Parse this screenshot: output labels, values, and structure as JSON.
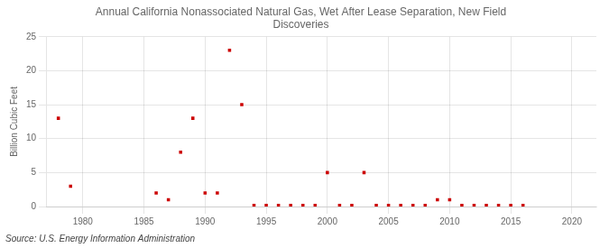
{
  "chart_data": {
    "type": "scatter",
    "title": "Annual California Nonassociated Natural Gas, Wet After Lease Separation, New Field\nDiscoveries",
    "ylabel": "Billion Cubic Feet",
    "source": "Source: U.S. Energy Information Administration",
    "x": [
      1978,
      1979,
      1986,
      1987,
      1988,
      1989,
      1990,
      1991,
      1992,
      1993,
      1994,
      1995,
      1996,
      1997,
      1998,
      1999,
      2000,
      2001,
      2002,
      2003,
      2004,
      2005,
      2006,
      2007,
      2008,
      2009,
      2010,
      2011,
      2012,
      2013,
      2014,
      2015,
      2016
    ],
    "values": [
      13.0,
      3.0,
      2.0,
      1.0,
      8.0,
      13.0,
      2.0,
      2.0,
      23.0,
      15.0,
      0.15,
      0.15,
      0.15,
      0.15,
      0.15,
      0.15,
      5.0,
      0.15,
      0.15,
      5.0,
      0.15,
      0.15,
      0.15,
      0.15,
      0.15,
      1.0,
      1.0,
      0.15,
      0.15,
      0.15,
      0.15,
      0.15,
      0.15
    ],
    "color": "#cc0000",
    "marker": "square",
    "xlim": [
      1977,
      2022
    ],
    "ylim": [
      0,
      25
    ],
    "xticks": [
      1980,
      1985,
      1990,
      1995,
      2000,
      2005,
      2010,
      2015,
      2020
    ],
    "yticks": [
      0,
      5,
      10,
      15,
      20,
      25
    ],
    "grid": true
  }
}
